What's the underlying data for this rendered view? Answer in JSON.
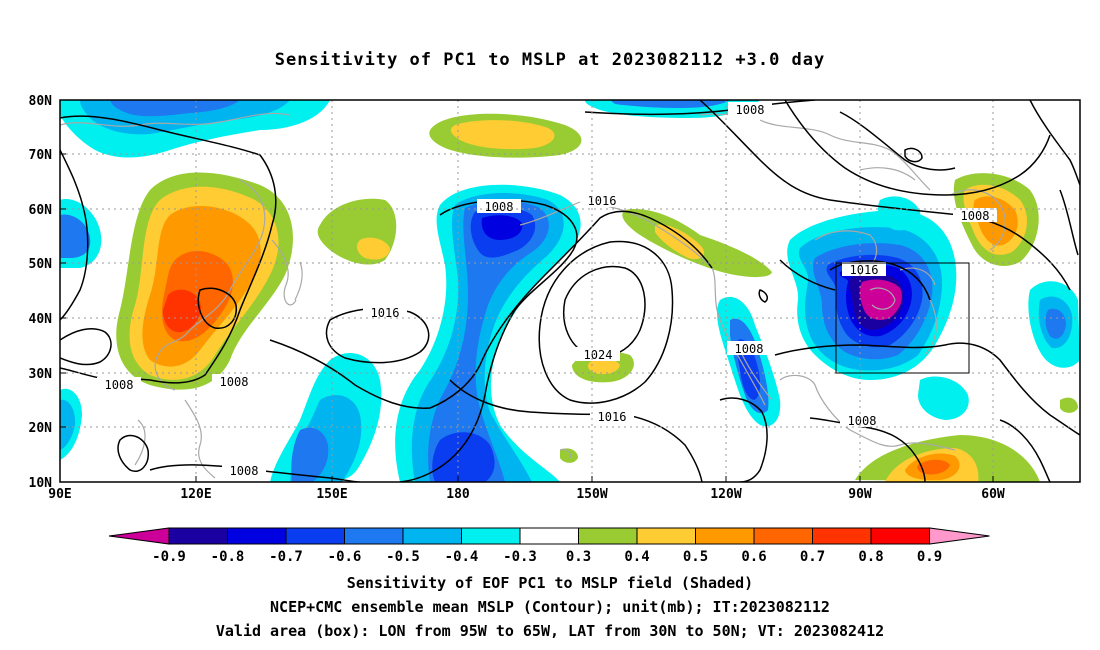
{
  "title": "Sensitivity of PC1 to MSLP at 2023082112 +3.0 day",
  "lat_labels": [
    "80N",
    "70N",
    "60N",
    "50N",
    "40N",
    "30N",
    "20N",
    "10N"
  ],
  "lon_labels": [
    "90E",
    "120E",
    "150E",
    "180",
    "150W",
    "120W",
    "90W",
    "60W"
  ],
  "contour_labels": [
    {
      "text": "1008"
    },
    {
      "text": "1008"
    },
    {
      "text": "1016"
    },
    {
      "text": "1008"
    },
    {
      "text": "1016"
    },
    {
      "text": "1008"
    },
    {
      "text": "1008"
    },
    {
      "text": "1024"
    },
    {
      "text": "1016"
    },
    {
      "text": "1008"
    },
    {
      "text": "1008"
    },
    {
      "text": "1008"
    },
    {
      "text": "1016"
    }
  ],
  "colorbar": {
    "ticks": [
      "-0.9",
      "-0.8",
      "-0.7",
      "-0.6",
      "-0.5",
      "-0.4",
      "-0.3",
      "0.3",
      "0.4",
      "0.5",
      "0.6",
      "0.7",
      "0.8",
      "0.9"
    ],
    "colors": [
      "#cc0099",
      "#1a00a0",
      "#0000e0",
      "#0a3cf0",
      "#1e78f0",
      "#00b4f0",
      "#00f0f0",
      "#ffffff",
      "#99cc33",
      "#ffcc33",
      "#ff9900",
      "#ff6600",
      "#ff3300",
      "#ff0000",
      "#ff99cc"
    ]
  },
  "captions": [
    "Sensitivity of EOF PC1 to MSLP field (Shaded)",
    "NCEP+CMC ensemble mean MSLP (Contour); unit(mb); IT:2023082112",
    "Valid area (box): LON from 95W to 65W, LAT from 30N to 50N; VT: 2023082412"
  ]
}
